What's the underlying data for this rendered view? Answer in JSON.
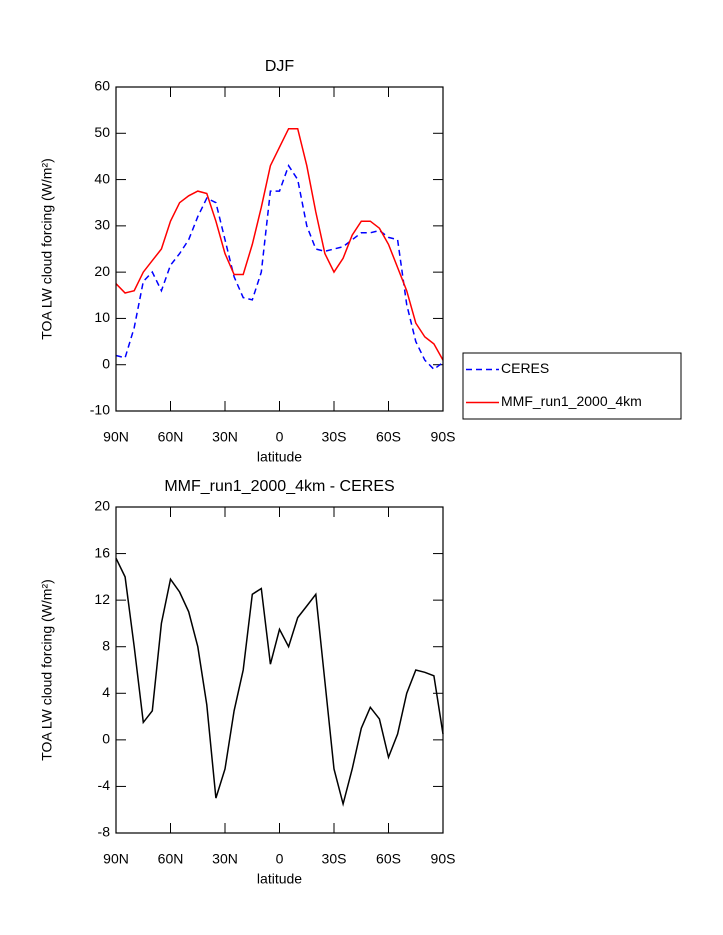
{
  "chart_data": [
    {
      "type": "line",
      "title": "DJF",
      "xlabel": "latitude",
      "ylabel": "TOA LW cloud forcing (W/m²)",
      "x": [
        90,
        85,
        80,
        75,
        70,
        65,
        60,
        55,
        50,
        45,
        40,
        35,
        30,
        25,
        20,
        15,
        10,
        5,
        0,
        -5,
        -10,
        -15,
        -20,
        -25,
        -30,
        -35,
        -40,
        -45,
        -50,
        -55,
        -60,
        -65,
        -70,
        -75,
        -80,
        -85,
        -90
      ],
      "series": [
        {
          "name": "CERES",
          "color": "#0000ff",
          "dashed": true,
          "values": [
            2,
            1.5,
            8,
            18,
            20,
            16,
            21.5,
            24,
            27,
            32,
            36,
            35,
            27,
            19,
            14.5,
            14,
            20,
            37.5,
            37.5,
            43,
            40,
            30,
            25,
            24.5,
            25,
            25.5,
            27,
            28.5,
            28.5,
            29,
            27.5,
            27,
            13,
            5,
            1,
            -1,
            0.5
          ]
        },
        {
          "name": "MMF_run1_2000_4km",
          "color": "#ff0000",
          "dashed": false,
          "values": [
            17.5,
            15.5,
            16,
            20,
            22.5,
            25,
            31,
            35,
            36.5,
            37.5,
            37,
            31,
            24,
            19.5,
            19.5,
            26,
            34,
            43,
            47,
            51,
            51,
            43,
            33,
            24,
            20,
            23,
            28,
            31,
            31,
            29.5,
            26,
            21,
            16,
            9,
            6,
            4.5,
            1
          ]
        }
      ],
      "xlim": [
        90,
        -90
      ],
      "xticks": [
        {
          "value": 90,
          "label": "90N"
        },
        {
          "value": 60,
          "label": "60N"
        },
        {
          "value": 30,
          "label": "30N"
        },
        0,
        {
          "value": -30,
          "label": "30S"
        },
        {
          "value": -60,
          "label": "60S"
        },
        {
          "value": -90,
          "label": "90S"
        }
      ],
      "ylim": [
        -10,
        60
      ],
      "yticks": [
        -10,
        0,
        10,
        20,
        30,
        40,
        50,
        60
      ],
      "legend": "right"
    },
    {
      "type": "line",
      "title": "MMF_run1_2000_4km - CERES",
      "xlabel": "latitude",
      "ylabel": "TOA LW cloud forcing (W/m²)",
      "x": [
        90,
        85,
        80,
        75,
        70,
        65,
        60,
        55,
        50,
        45,
        40,
        35,
        30,
        25,
        20,
        15,
        10,
        5,
        0,
        -5,
        -10,
        -15,
        -20,
        -25,
        -30,
        -35,
        -40,
        -45,
        -50,
        -55,
        -60,
        -65,
        -70,
        -75,
        -80,
        -85,
        -90
      ],
      "color": "#000000",
      "values": [
        15.6,
        14,
        8,
        1.5,
        2.5,
        10,
        13.8,
        12.7,
        11,
        8,
        3,
        -5,
        -2.5,
        2.5,
        6,
        12.5,
        13,
        6.5,
        9.5,
        8,
        10.5,
        11.5,
        12.5,
        5,
        -2.5,
        -5.5,
        -2.5,
        1,
        2.8,
        1.8,
        -1.5,
        0.5,
        4,
        6,
        5.8,
        5.5,
        0.5
      ],
      "xlim": [
        90,
        -90
      ],
      "xticks": [
        {
          "value": 90,
          "label": "90N"
        },
        {
          "value": 60,
          "label": "60N"
        },
        {
          "value": 30,
          "label": "30N"
        },
        0,
        {
          "value": -30,
          "label": "30S"
        },
        {
          "value": -60,
          "label": "60S"
        },
        {
          "value": -90,
          "label": "90S"
        }
      ],
      "ylim": [
        -8,
        20
      ],
      "yticks": [
        -8,
        -4,
        0,
        4,
        8,
        12,
        16,
        20
      ]
    }
  ]
}
